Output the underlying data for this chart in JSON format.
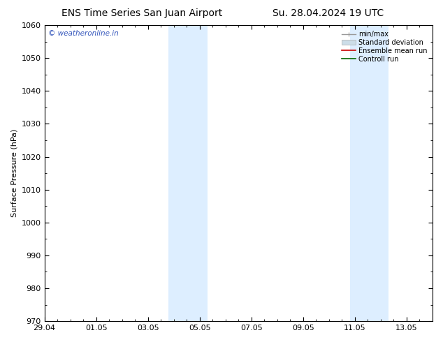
{
  "title_left": "ENS Time Series San Juan Airport",
  "title_right": "Su. 28.04.2024 19 UTC",
  "ylabel": "Surface Pressure (hPa)",
  "ylim": [
    970,
    1060
  ],
  "yticks": [
    970,
    980,
    990,
    1000,
    1010,
    1020,
    1030,
    1040,
    1050,
    1060
  ],
  "x_min": 0,
  "x_max": 15,
  "xtick_labels": [
    "29.04",
    "01.05",
    "03.05",
    "05.05",
    "07.05",
    "09.05",
    "11.05",
    "13.05"
  ],
  "xtick_positions": [
    0,
    2,
    4,
    6,
    8,
    10,
    12,
    14
  ],
  "shaded_bands": [
    {
      "x_start": 5.0,
      "x_end": 5.5
    },
    {
      "x_start": 5.5,
      "x_end": 6.5
    },
    {
      "x_start": 12.0,
      "x_end": 12.5
    },
    {
      "x_start": 12.5,
      "x_end": 13.5
    }
  ],
  "shaded_color": "#ddeeff",
  "shaded_color2": "#cce8f8",
  "background_color": "#ffffff",
  "watermark_text": "© weatheronline.in",
  "watermark_color": "#3355bb",
  "legend_entries": [
    {
      "label": "min/max",
      "color": "#aaaaaa",
      "style": "minmax"
    },
    {
      "label": "Standard deviation",
      "color": "#ccddee",
      "style": "stddev"
    },
    {
      "label": "Ensemble mean run",
      "color": "#cc0000",
      "style": "line"
    },
    {
      "label": "Controll run",
      "color": "#006600",
      "style": "line"
    }
  ],
  "spine_color": "#000000",
  "tick_color": "#000000",
  "font_size": 8,
  "title_font_size": 10
}
